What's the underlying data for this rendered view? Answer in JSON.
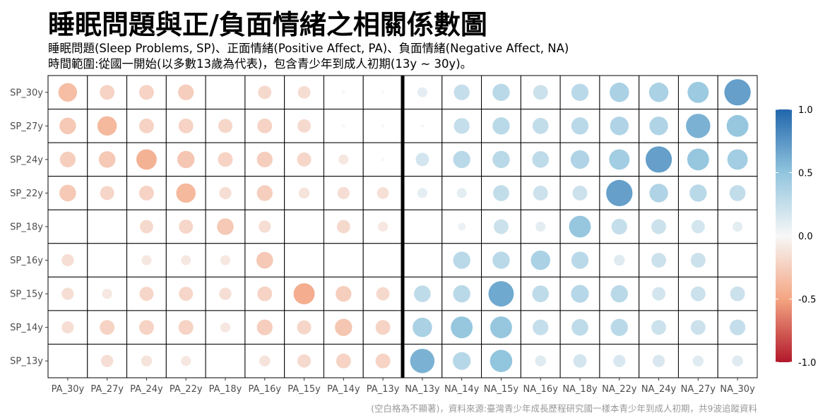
{
  "title": "睡眠問題與正/負面情緒之相關係數圖",
  "subtitle_line1": "睡眠問題(Sleep Problems, SP)、正面情緒(Positive Affect, PA)、負面情緒(Negative Affect, NA)",
  "subtitle_line2": "時間範圍:從國一開始(以多數13歲為代表)，包含青少年到成人初期(13y ~ 30y)。",
  "caption": "(空白格為不顯著)，資料來源:臺灣青少年成長歷程研究國一樣本青少年到成人初期，共9波追蹤資料",
  "colors": {
    "negative": "#B2182B",
    "zero": "#FFFFFF",
    "positive": "#2166AC",
    "divider": "#000000"
  },
  "chart_data": {
    "type": "heatmap",
    "style": "correlation circles, size and color encode coefficient, blank cell = not significant",
    "x_categories": [
      "PA_30y",
      "PA_27y",
      "PA_24y",
      "PA_22y",
      "PA_18y",
      "PA_16y",
      "PA_15y",
      "PA_14y",
      "PA_13y",
      "NA_13y",
      "NA_14y",
      "NA_15y",
      "NA_16y",
      "NA_18y",
      "NA_22y",
      "NA_24y",
      "NA_27y",
      "NA_30y"
    ],
    "y_categories": [
      "SP_30y",
      "SP_27y",
      "SP_24y",
      "SP_22y",
      "SP_18y",
      "SP_16y",
      "SP_15y",
      "SP_14y",
      "SP_13y"
    ],
    "divider_after_index": 8,
    "values": [
      [
        -0.35,
        -0.22,
        -0.22,
        -0.25,
        null,
        -0.18,
        -0.16,
        -0.01,
        -0.01,
        0.1,
        0.25,
        0.3,
        0.22,
        0.3,
        0.38,
        0.38,
        0.45,
        0.7
      ],
      [
        -0.28,
        -0.38,
        -0.22,
        -0.22,
        -0.2,
        -0.22,
        -0.18,
        -0.01,
        0.01,
        0.01,
        0.25,
        0.3,
        0.26,
        0.3,
        0.35,
        0.35,
        0.6,
        0.48
      ],
      [
        -0.25,
        -0.28,
        -0.42,
        -0.3,
        -0.22,
        -0.25,
        -0.2,
        -0.1,
        -0.01,
        0.18,
        0.3,
        0.3,
        0.28,
        0.35,
        0.42,
        0.7,
        0.48,
        0.42
      ],
      [
        -0.28,
        -0.2,
        -0.22,
        -0.38,
        -0.15,
        -0.25,
        -0.12,
        -0.15,
        -0.14,
        0.1,
        0.1,
        0.26,
        0.22,
        0.22,
        0.7,
        0.35,
        0.3,
        0.26
      ],
      [
        null,
        null,
        -0.18,
        -0.2,
        -0.28,
        -0.15,
        null,
        -0.18,
        -0.1,
        null,
        0.06,
        0.22,
        0.1,
        0.48,
        0.25,
        0.22,
        0.18,
        0.1
      ],
      [
        -0.15,
        null,
        -0.1,
        -0.1,
        -0.1,
        -0.28,
        null,
        null,
        null,
        null,
        0.3,
        0.3,
        0.38,
        0.3,
        0.12,
        0.22,
        0.22,
        null
      ],
      [
        -0.15,
        -0.1,
        -0.2,
        -0.2,
        -0.15,
        -0.22,
        -0.45,
        -0.25,
        -0.18,
        0.28,
        0.3,
        0.65,
        0.28,
        0.32,
        0.3,
        0.18,
        0.22,
        0.22
      ],
      [
        -0.15,
        -0.22,
        -0.22,
        -0.22,
        -0.1,
        -0.25,
        -0.2,
        -0.3,
        -0.22,
        0.38,
        0.48,
        0.48,
        0.25,
        0.28,
        0.3,
        0.22,
        0.22,
        0.25
      ],
      [
        null,
        -0.15,
        -0.12,
        -0.1,
        null,
        -0.12,
        -0.18,
        -0.22,
        -0.22,
        0.6,
        0.32,
        0.5,
        0.12,
        0.18,
        0.15,
        0.15,
        0.12,
        0.12
      ]
    ],
    "legend": {
      "position": "right",
      "range": [
        -1.0,
        1.0
      ],
      "tick_values": [
        1.0,
        0.5,
        0.0,
        -0.5,
        -1.0
      ],
      "tick_labels": [
        "1.0",
        "0.5",
        "0.0",
        "-0.5",
        "-1.0"
      ]
    }
  }
}
